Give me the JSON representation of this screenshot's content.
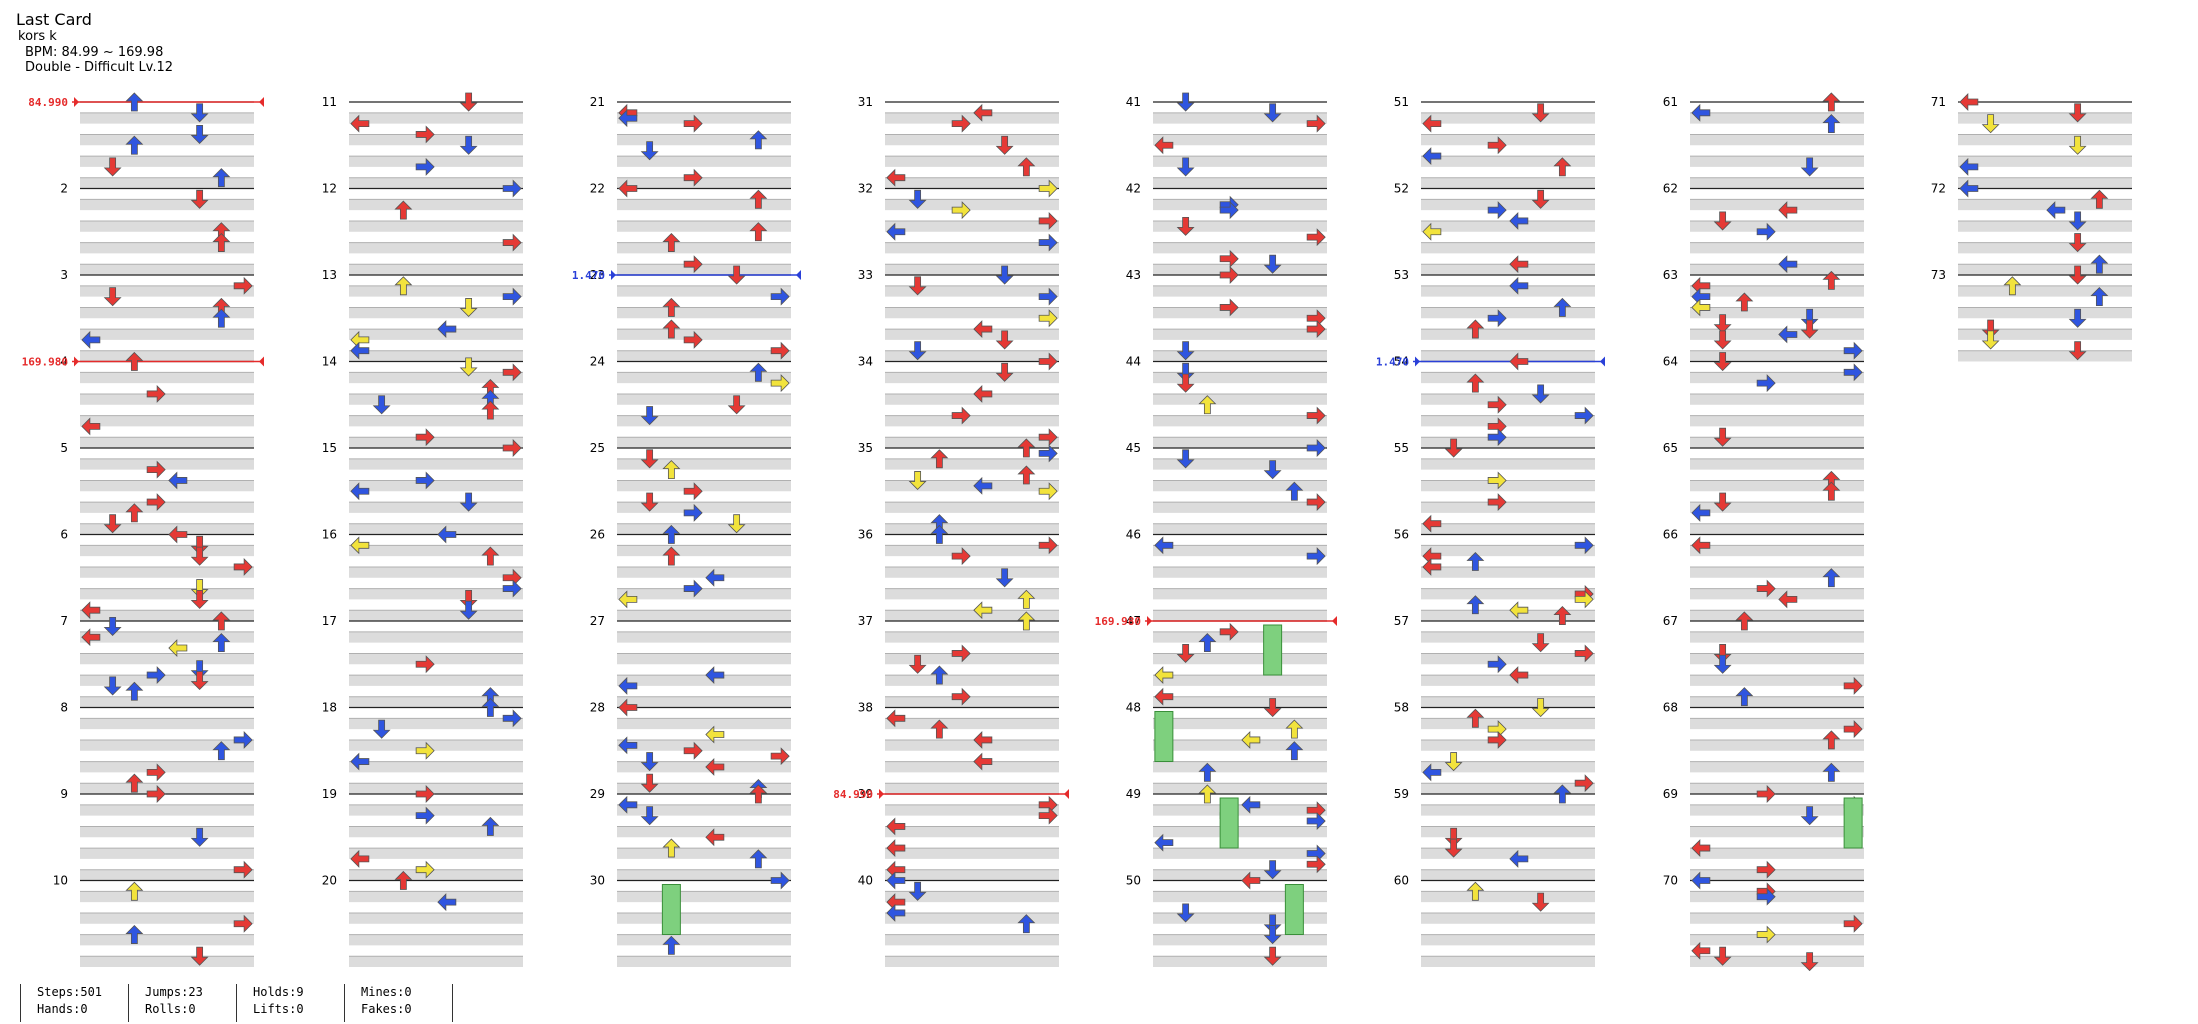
{
  "song": {
    "title": "Last Card",
    "artist": "kors k",
    "bpm_text": "BPM: 84.99 ~ 169.98",
    "difficulty_text": "Double - Difficult Lv.12"
  },
  "measure_numbers": [
    "2",
    "3",
    "4",
    "5",
    "6",
    "7",
    "8",
    "9",
    "10",
    "11",
    "12",
    "13",
    "14",
    "15",
    "16",
    "17",
    "18",
    "19",
    "20",
    "21",
    "22",
    "23",
    "24",
    "25",
    "26",
    "27",
    "28",
    "29",
    "30",
    "31",
    "32",
    "33",
    "34",
    "35",
    "36",
    "37",
    "38",
    "39",
    "40",
    "41",
    "42",
    "43",
    "44",
    "45",
    "46",
    "47",
    "48",
    "49",
    "50",
    "51",
    "52",
    "53",
    "54",
    "55",
    "56",
    "57",
    "58",
    "59",
    "60",
    "61",
    "62",
    "63",
    "64",
    "65",
    "66",
    "67",
    "68",
    "69",
    "70",
    "71",
    "72",
    "73"
  ],
  "bpm_changes": [
    {
      "label": "84.990",
      "measure": 1,
      "color": "#e52b2b"
    },
    {
      "label": "169.980",
      "measure": 4,
      "color": "#e52b2b"
    },
    {
      "label": "1.470",
      "measure": 23,
      "color": "#2a40d8"
    },
    {
      "label": "84.990",
      "measure": 39,
      "color": "#e52b2b"
    },
    {
      "label": "169.980",
      "measure": 47,
      "color": "#e52b2b"
    },
    {
      "label": "1.470",
      "measure": 54,
      "color": "#2a40d8"
    }
  ],
  "colors": {
    "red_note": "#e53935",
    "blue_note": "#2f55e0",
    "yellow_note": "#f2e33c",
    "hold_body": "#7ed07e",
    "row_shade": "#dcdcdc"
  },
  "stats": {
    "steps": "Steps:501",
    "hands": "Hands:0",
    "jumps": "Jumps:23",
    "rolls": "Rolls:0",
    "holds": "Holds:9",
    "lifts": "Lifts:0",
    "mines": "Mines:0",
    "fakes": "Fakes:0"
  }
}
